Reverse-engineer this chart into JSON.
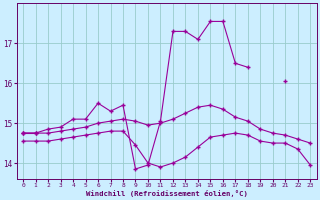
{
  "xlabel": "Windchill (Refroidissement éolien,°C)",
  "bg_color": "#cceeff",
  "line_color": "#990099",
  "grid_color": "#99cccc",
  "hours": [
    0,
    1,
    2,
    3,
    4,
    5,
    6,
    7,
    8,
    9,
    10,
    11,
    12,
    13,
    14,
    15,
    16,
    17,
    18,
    19,
    20,
    21,
    22,
    23
  ],
  "line1": [
    14.75,
    14.75,
    14.85,
    14.9,
    15.1,
    15.1,
    15.5,
    15.3,
    15.45,
    13.85,
    13.95,
    15.05,
    17.3,
    17.3,
    17.1,
    17.55,
    17.55,
    16.5,
    16.4,
    null,
    null,
    16.05,
    null,
    null
  ],
  "line2": [
    14.75,
    14.75,
    null,
    null,
    null,
    null,
    null,
    null,
    null,
    null,
    null,
    null,
    null,
    null,
    null,
    null,
    null,
    null,
    null,
    null,
    null,
    null,
    null,
    null
  ],
  "line3": [
    14.75,
    14.75,
    14.75,
    14.8,
    14.85,
    14.9,
    15.0,
    15.05,
    15.1,
    15.05,
    14.95,
    15.0,
    15.1,
    15.25,
    15.4,
    15.45,
    15.35,
    15.15,
    15.05,
    14.85,
    14.75,
    14.7,
    14.6,
    14.5
  ],
  "line4": [
    14.55,
    14.55,
    14.55,
    14.6,
    14.65,
    14.7,
    14.75,
    14.8,
    14.8,
    14.45,
    14.0,
    13.9,
    14.0,
    14.15,
    14.4,
    14.65,
    14.7,
    14.75,
    14.7,
    14.55,
    14.5,
    14.5,
    14.35,
    13.95
  ],
  "xlim": [
    -0.5,
    23.5
  ],
  "ylim": [
    13.6,
    18.0
  ],
  "yticks": [
    14,
    15,
    16,
    17
  ],
  "xticks": [
    0,
    1,
    2,
    3,
    4,
    5,
    6,
    7,
    8,
    9,
    10,
    11,
    12,
    13,
    14,
    15,
    16,
    17,
    18,
    19,
    20,
    21,
    22,
    23
  ]
}
